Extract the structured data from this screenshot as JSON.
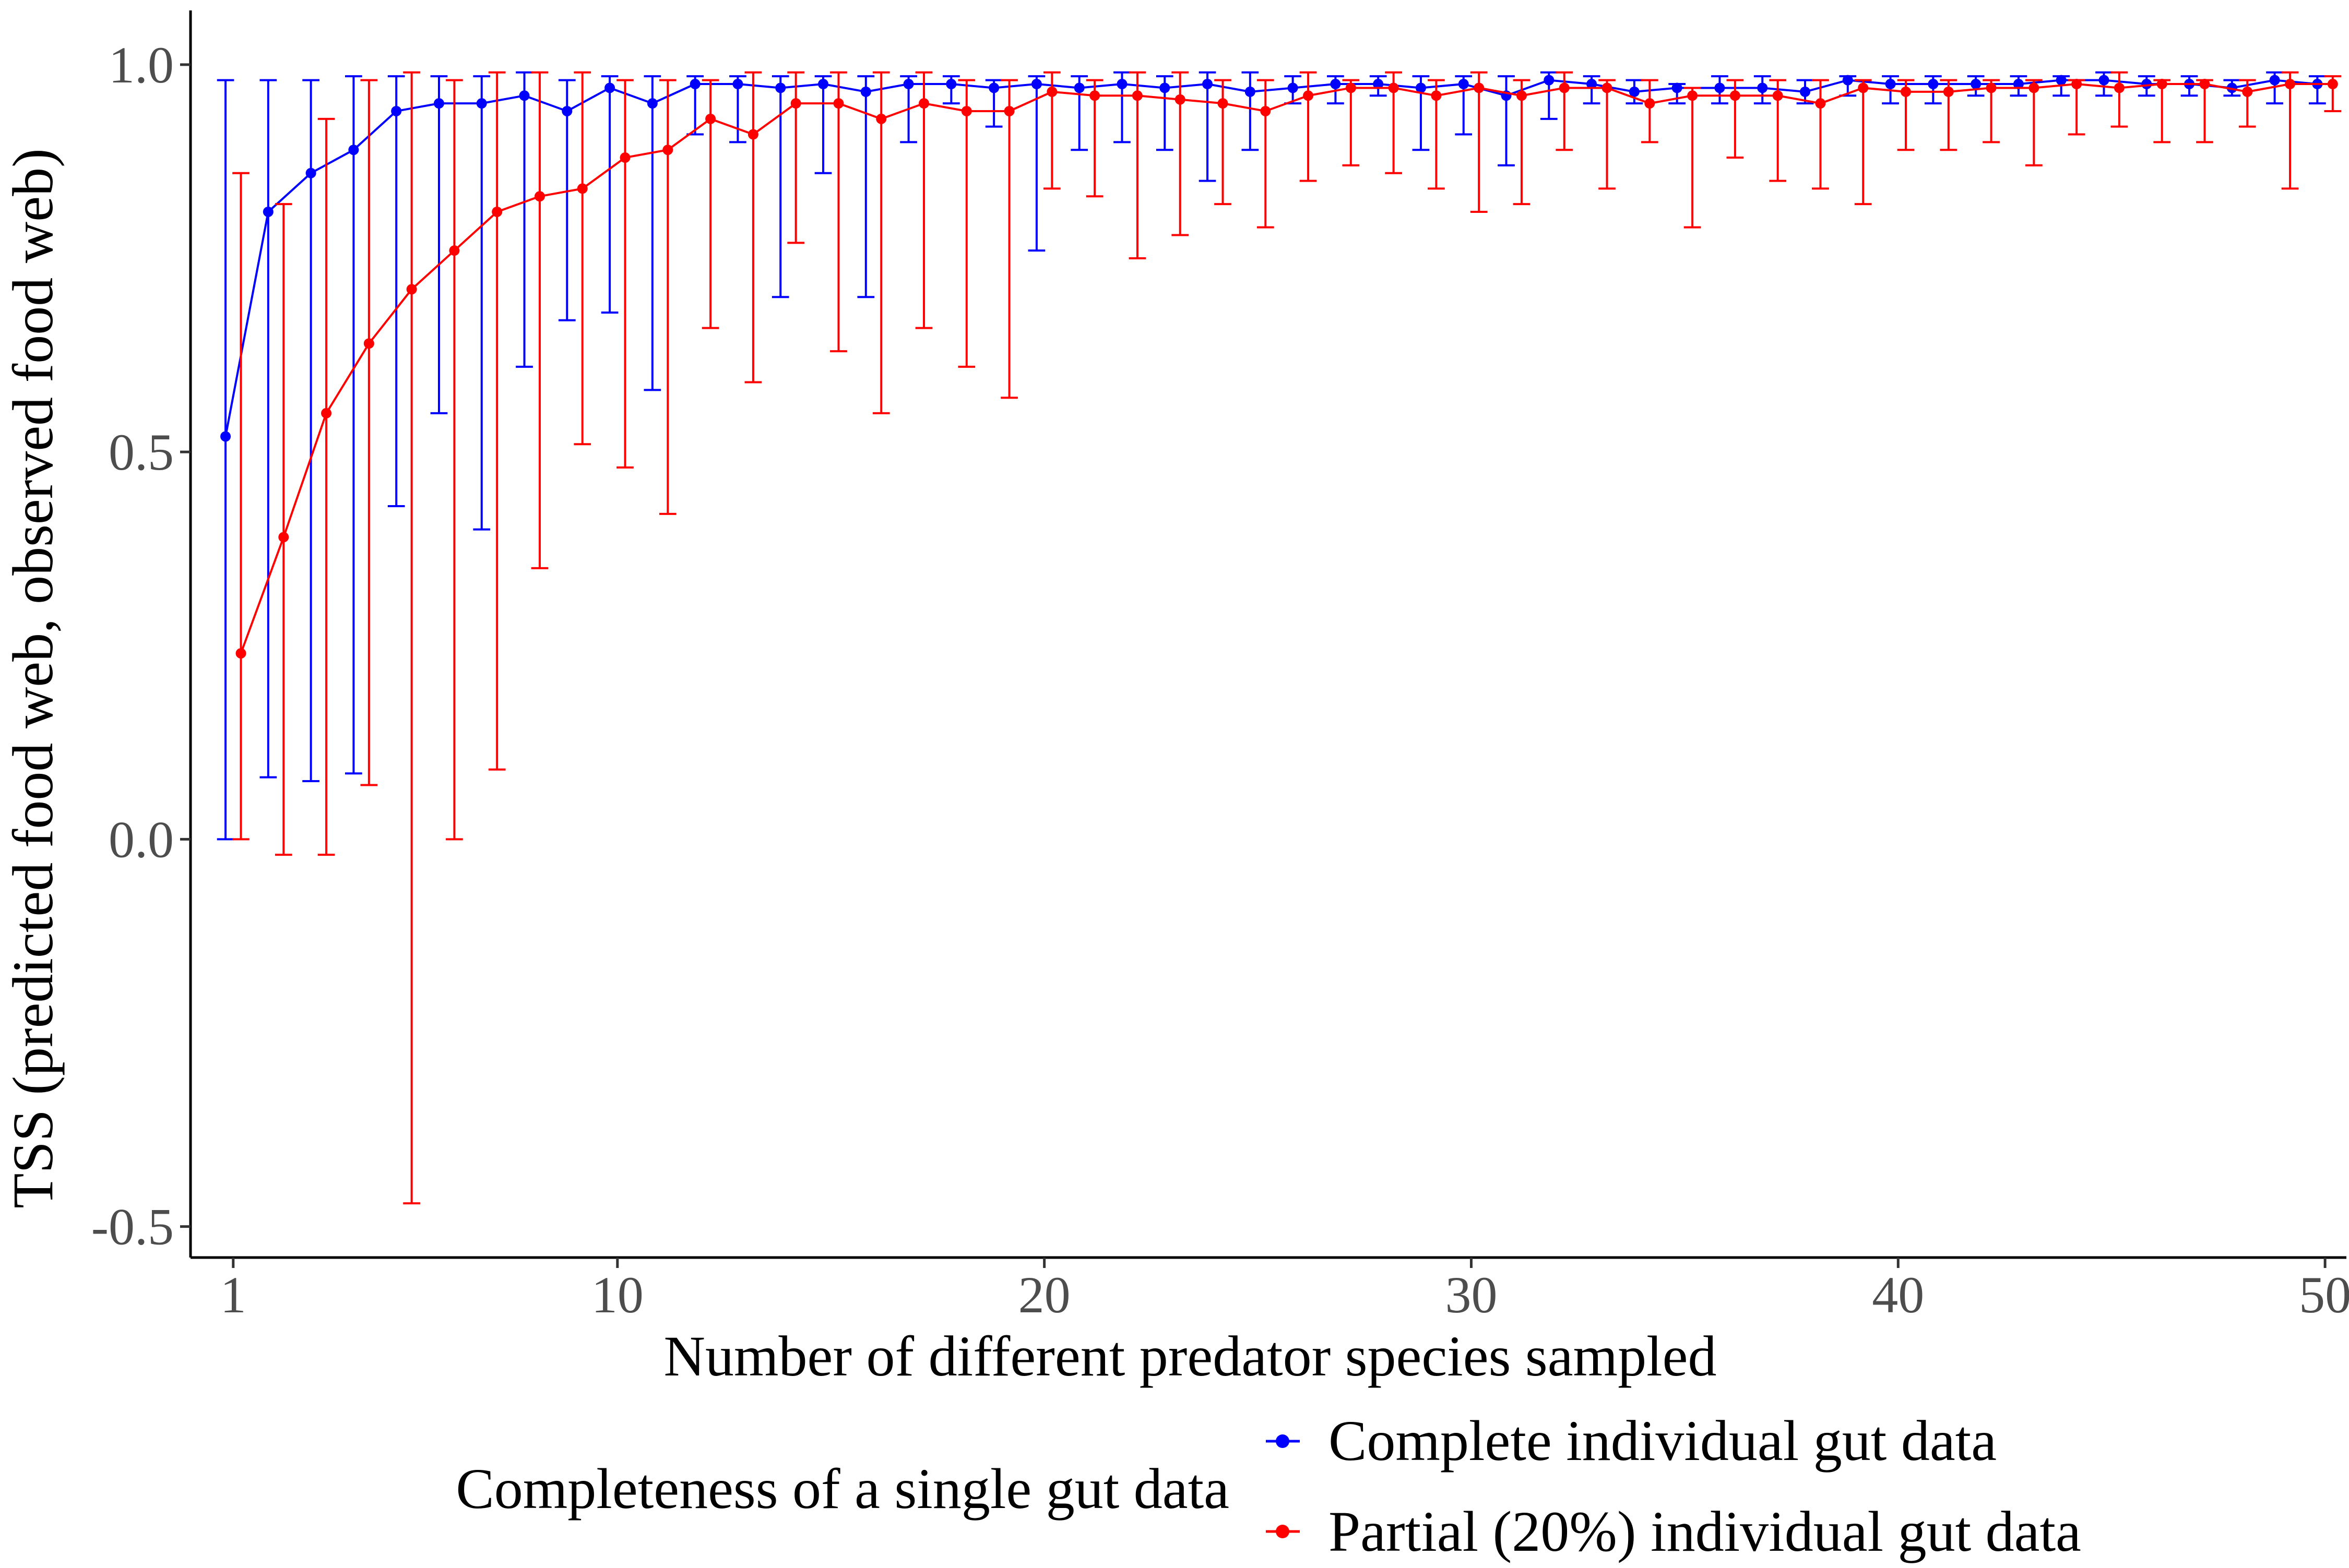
{
  "chart_data": {
    "type": "line",
    "xlabel": "Number of different predator species sampled",
    "ylabel": "TSS (predicted food web, observed food web)",
    "xlim": [
      0,
      50.5
    ],
    "ylim": [
      -0.54,
      1.07
    ],
    "x_ticks": [
      1,
      10,
      20,
      30,
      40,
      50
    ],
    "x_tick_labels": [
      "1",
      "10",
      "20",
      "30",
      "40",
      "50"
    ],
    "y_ticks": [
      -0.5,
      0.0,
      0.5,
      1.0
    ],
    "y_tick_labels": [
      "-0.5",
      "0.0",
      "0.5",
      "1.0"
    ],
    "grid": false,
    "legend": {
      "position": "bottom",
      "title": "Completeness of a single gut data"
    },
    "series": [
      {
        "name": "Complete individual gut data",
        "color": "#0000ff",
        "x": [
          1,
          2,
          3,
          4,
          5,
          6,
          7,
          8,
          9,
          10,
          11,
          12,
          13,
          14,
          15,
          16,
          17,
          18,
          19,
          20,
          21,
          22,
          23,
          24,
          25,
          26,
          27,
          28,
          29,
          30,
          31,
          32,
          33,
          34,
          35,
          36,
          37,
          38,
          39,
          40,
          41,
          42,
          43,
          44,
          45,
          46,
          47,
          48,
          49,
          50
        ],
        "y": [
          0.52,
          0.81,
          0.86,
          0.89,
          0.94,
          0.95,
          0.95,
          0.96,
          0.94,
          0.97,
          0.95,
          0.975,
          0.975,
          0.97,
          0.975,
          0.965,
          0.975,
          0.975,
          0.97,
          0.975,
          0.97,
          0.975,
          0.97,
          0.975,
          0.965,
          0.97,
          0.975,
          0.975,
          0.97,
          0.975,
          0.96,
          0.98,
          0.975,
          0.965,
          0.97,
          0.97,
          0.97,
          0.965,
          0.98,
          0.975,
          0.975,
          0.975,
          0.975,
          0.98,
          0.98,
          0.975,
          0.975,
          0.97,
          0.98,
          0.975
        ],
        "lower": [
          0.0,
          0.08,
          0.075,
          0.085,
          0.43,
          0.55,
          0.4,
          0.61,
          0.67,
          0.68,
          0.58,
          0.91,
          0.9,
          0.7,
          0.86,
          0.7,
          0.9,
          0.95,
          0.92,
          0.76,
          0.89,
          0.9,
          0.89,
          0.85,
          0.89,
          0.95,
          0.95,
          0.96,
          0.89,
          0.91,
          0.87,
          0.93,
          0.95,
          0.95,
          0.95,
          0.95,
          0.95,
          0.95,
          0.96,
          0.95,
          0.95,
          0.96,
          0.96,
          0.96,
          0.96,
          0.96,
          0.96,
          0.96,
          0.95,
          0.95
        ],
        "upper": [
          0.98,
          0.98,
          0.98,
          0.985,
          0.985,
          0.985,
          0.985,
          0.99,
          0.98,
          0.985,
          0.985,
          0.985,
          0.985,
          0.985,
          0.985,
          0.985,
          0.985,
          0.985,
          0.98,
          0.985,
          0.985,
          0.99,
          0.985,
          0.99,
          0.99,
          0.985,
          0.985,
          0.985,
          0.985,
          0.985,
          0.985,
          0.99,
          0.985,
          0.98,
          0.975,
          0.985,
          0.985,
          0.98,
          0.985,
          0.985,
          0.985,
          0.985,
          0.985,
          0.985,
          0.99,
          0.985,
          0.985,
          0.98,
          0.99,
          0.985
        ]
      },
      {
        "name": "Partial (20%) individual gut data",
        "color": "#ff0000",
        "x": [
          1,
          2,
          3,
          4,
          5,
          6,
          7,
          8,
          9,
          10,
          11,
          12,
          13,
          14,
          15,
          16,
          17,
          18,
          19,
          20,
          21,
          22,
          23,
          24,
          25,
          26,
          27,
          28,
          29,
          30,
          31,
          32,
          33,
          34,
          35,
          36,
          37,
          38,
          39,
          40,
          41,
          42,
          43,
          44,
          45,
          46,
          47,
          48,
          49,
          50
        ],
        "y": [
          0.24,
          0.39,
          0.55,
          0.64,
          0.71,
          0.76,
          0.81,
          0.83,
          0.84,
          0.88,
          0.89,
          0.93,
          0.91,
          0.95,
          0.95,
          0.93,
          0.95,
          0.94,
          0.94,
          0.965,
          0.96,
          0.96,
          0.955,
          0.95,
          0.94,
          0.96,
          0.97,
          0.97,
          0.96,
          0.97,
          0.96,
          0.97,
          0.97,
          0.95,
          0.96,
          0.96,
          0.96,
          0.95,
          0.97,
          0.965,
          0.965,
          0.97,
          0.97,
          0.975,
          0.97,
          0.975,
          0.975,
          0.965,
          0.975,
          0.975
        ],
        "lower": [
          0.0,
          -0.02,
          -0.02,
          0.07,
          -0.47,
          0.0,
          0.09,
          0.35,
          0.51,
          0.48,
          0.42,
          0.66,
          0.59,
          0.77,
          0.63,
          0.55,
          0.66,
          0.61,
          0.57,
          0.84,
          0.83,
          0.75,
          0.78,
          0.82,
          0.79,
          0.85,
          0.87,
          0.86,
          0.84,
          0.81,
          0.82,
          0.89,
          0.84,
          0.9,
          0.79,
          0.88,
          0.85,
          0.84,
          0.82,
          0.89,
          0.89,
          0.9,
          0.87,
          0.91,
          0.92,
          0.9,
          0.9,
          0.92,
          0.84,
          0.94
        ],
        "upper": [
          0.86,
          0.82,
          0.93,
          0.98,
          0.99,
          0.98,
          0.99,
          0.99,
          0.99,
          0.98,
          0.98,
          0.98,
          0.99,
          0.99,
          0.99,
          0.99,
          0.99,
          0.98,
          0.98,
          0.99,
          0.98,
          0.99,
          0.99,
          0.98,
          0.98,
          0.99,
          0.98,
          0.99,
          0.98,
          0.99,
          0.98,
          0.99,
          0.98,
          0.98,
          0.97,
          0.98,
          0.98,
          0.98,
          0.98,
          0.98,
          0.98,
          0.98,
          0.98,
          0.98,
          0.99,
          0.98,
          0.98,
          0.98,
          0.99,
          0.985
        ]
      }
    ]
  }
}
